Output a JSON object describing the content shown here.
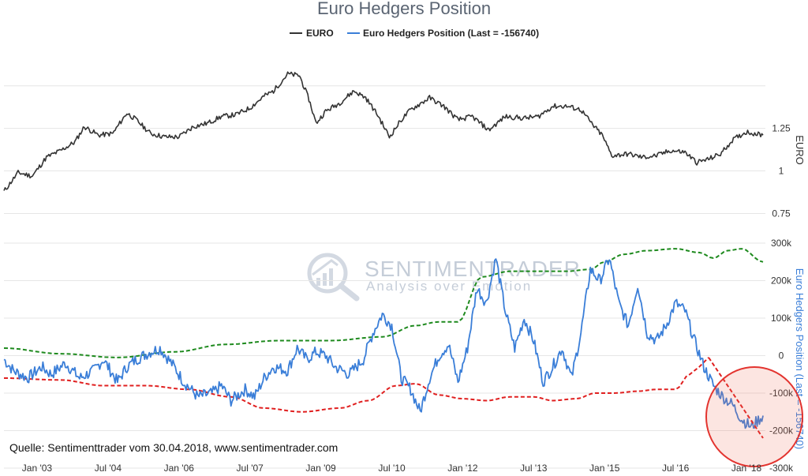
{
  "chart_data": {
    "type": "line",
    "title": "Euro Hedgers Position",
    "legend": [
      {
        "name": "EURO",
        "color": "#333333"
      },
      {
        "name": "Euro Hedgers Position (Last = -156740)",
        "color": "#3a7ed8"
      }
    ],
    "source": "Quelle: Sentimenttrader vom 30.04.2018, www.sentimentrader.com",
    "watermark": {
      "name": "SENTIMENTRADER",
      "tagline": "Analysis over Emotion"
    },
    "x_ticks": [
      "Jan '03",
      "Jul '04",
      "Jan '06",
      "Jul '07",
      "Jan '09",
      "Jul '10",
      "Jan '12",
      "Jul '13",
      "Jan '15",
      "Jul '16",
      "Jan '18"
    ],
    "x_tick_years": [
      2003,
      2004.5,
      2006,
      2007.5,
      2009,
      2010.5,
      2012,
      2013.5,
      2015,
      2016.5,
      2018
    ],
    "xlim": [
      2002.3,
      2018.4
    ],
    "upper_panel": {
      "ylabel": "EURO",
      "yticks": [
        "1.25",
        "1",
        "0.75"
      ],
      "ytick_values": [
        1.25,
        1.0,
        0.75
      ],
      "ylim": [
        0.65,
        1.55
      ],
      "series": {
        "name": "EURO",
        "x": [
          2002.3,
          2002.6,
          2002.9,
          2003.2,
          2003.5,
          2003.8,
          2004.0,
          2004.3,
          2004.6,
          2004.9,
          2005.1,
          2005.4,
          2005.7,
          2006.0,
          2006.3,
          2006.6,
          2006.9,
          2007.2,
          2007.5,
          2007.8,
          2008.0,
          2008.3,
          2008.55,
          2008.75,
          2008.9,
          2009.1,
          2009.4,
          2009.7,
          2009.95,
          2010.2,
          2010.45,
          2010.7,
          2010.9,
          2011.3,
          2011.6,
          2011.9,
          2012.2,
          2012.55,
          2012.9,
          2013.3,
          2013.6,
          2013.9,
          2014.2,
          2014.5,
          2014.75,
          2014.95,
          2015.15,
          2015.5,
          2015.8,
          2016.1,
          2016.4,
          2016.7,
          2016.95,
          2017.2,
          2017.45,
          2017.7,
          2018.0,
          2018.35
        ],
        "values": [
          0.88,
          0.99,
          0.97,
          1.08,
          1.12,
          1.17,
          1.26,
          1.21,
          1.22,
          1.34,
          1.3,
          1.22,
          1.2,
          1.2,
          1.26,
          1.28,
          1.32,
          1.33,
          1.37,
          1.44,
          1.47,
          1.57,
          1.56,
          1.42,
          1.28,
          1.35,
          1.4,
          1.47,
          1.43,
          1.33,
          1.2,
          1.3,
          1.36,
          1.43,
          1.38,
          1.3,
          1.32,
          1.24,
          1.32,
          1.31,
          1.32,
          1.38,
          1.38,
          1.36,
          1.27,
          1.21,
          1.09,
          1.1,
          1.08,
          1.09,
          1.12,
          1.11,
          1.05,
          1.07,
          1.1,
          1.18,
          1.23,
          1.21
        ]
      }
    },
    "lower_panel": {
      "ylabel": "Euro Hedgers Position (Last = -156740)",
      "yticks": [
        "300k",
        "200k",
        "100k",
        "0",
        "-100k",
        "-200k",
        "-300k"
      ],
      "ytick_values": [
        300000,
        200000,
        100000,
        0,
        -100000,
        -200000,
        -300000
      ],
      "ylim": [
        -300000,
        300000
      ],
      "series": [
        {
          "name": "Euro Hedgers Position (Last = -156740)",
          "color": "#3a7ed8",
          "x": [
            2002.3,
            2002.5,
            2002.8,
            2003.1,
            2003.3,
            2003.6,
            2003.9,
            2004.2,
            2004.4,
            2004.7,
            2004.9,
            2005.1,
            2005.4,
            2005.6,
            2005.9,
            2006.1,
            2006.4,
            2006.7,
            2006.9,
            2007.1,
            2007.4,
            2007.6,
            2007.8,
            2008.0,
            2008.3,
            2008.5,
            2008.7,
            2008.9,
            2009.1,
            2009.3,
            2009.6,
            2009.9,
            2010.1,
            2010.3,
            2010.5,
            2010.7,
            2010.9,
            2011.1,
            2011.3,
            2011.5,
            2011.7,
            2011.9,
            2012.1,
            2012.3,
            2012.5,
            2012.7,
            2012.9,
            2013.1,
            2013.3,
            2013.5,
            2013.7,
            2013.9,
            2014.1,
            2014.3,
            2014.5,
            2014.7,
            2014.9,
            2015.1,
            2015.3,
            2015.5,
            2015.7,
            2015.9,
            2016.1,
            2016.3,
            2016.5,
            2016.7,
            2016.9,
            2017.1,
            2017.3,
            2017.5,
            2017.7,
            2017.9,
            2018.1,
            2018.35
          ],
          "values": [
            -10000,
            -40000,
            -60000,
            -30000,
            -50000,
            -20000,
            -60000,
            -40000,
            -10000,
            -70000,
            -30000,
            -10000,
            10000,
            20000,
            -30000,
            -70000,
            -110000,
            -100000,
            -80000,
            -120000,
            -90000,
            -110000,
            -60000,
            -30000,
            -40000,
            20000,
            -10000,
            10000,
            0,
            -30000,
            -50000,
            -10000,
            60000,
            110000,
            80000,
            -60000,
            -90000,
            -150000,
            -60000,
            0,
            30000,
            -70000,
            20000,
            180000,
            140000,
            260000,
            120000,
            20000,
            100000,
            40000,
            -70000,
            -30000,
            20000,
            -60000,
            60000,
            230000,
            200000,
            260000,
            140000,
            80000,
            190000,
            60000,
            40000,
            80000,
            140000,
            120000,
            40000,
            -30000,
            -80000,
            -110000,
            -130000,
            -170000,
            -190000,
            -160000
          ]
        },
        {
          "name": "Upper band",
          "color": "#1e8a1e",
          "x": [
            2002.3,
            2003.5,
            2004.7,
            2005.9,
            2007.0,
            2008.1,
            2009.2,
            2010.3,
            2011.0,
            2011.5,
            2011.9,
            2012.4,
            2013.0,
            2013.6,
            2014.2,
            2014.7,
            2015.0,
            2015.4,
            2015.9,
            2016.5,
            2017.0,
            2017.3,
            2017.6,
            2017.9,
            2018.35
          ],
          "values": [
            20000,
            5000,
            -5000,
            10000,
            30000,
            40000,
            40000,
            50000,
            80000,
            90000,
            90000,
            210000,
            225000,
            225000,
            225000,
            230000,
            250000,
            270000,
            280000,
            285000,
            275000,
            260000,
            280000,
            285000,
            250000
          ]
        },
        {
          "name": "Lower band",
          "color": "#e02020",
          "x": [
            2002.3,
            2003.5,
            2004.4,
            2005.3,
            2006.2,
            2007.1,
            2007.8,
            2008.6,
            2009.4,
            2010.0,
            2010.6,
            2011.0,
            2011.5,
            2012.0,
            2012.5,
            2013.0,
            2013.5,
            2013.9,
            2014.4,
            2014.8,
            2015.2,
            2015.7,
            2016.1,
            2016.5,
            2016.8,
            2017.0,
            2017.2
          ],
          "values": [
            -60000,
            -65000,
            -80000,
            -80000,
            -90000,
            -110000,
            -140000,
            -150000,
            -140000,
            -120000,
            -80000,
            -75000,
            -105000,
            -115000,
            -120000,
            -110000,
            -110000,
            -120000,
            -115000,
            -100000,
            -100000,
            -95000,
            -90000,
            -90000,
            -50000,
            -30000,
            -5000
          ]
        },
        {
          "name": "Trend line",
          "color": "#e02020",
          "x": [
            2017.2,
            2018.35
          ],
          "values": [
            -5000,
            -220000
          ]
        }
      ]
    }
  }
}
